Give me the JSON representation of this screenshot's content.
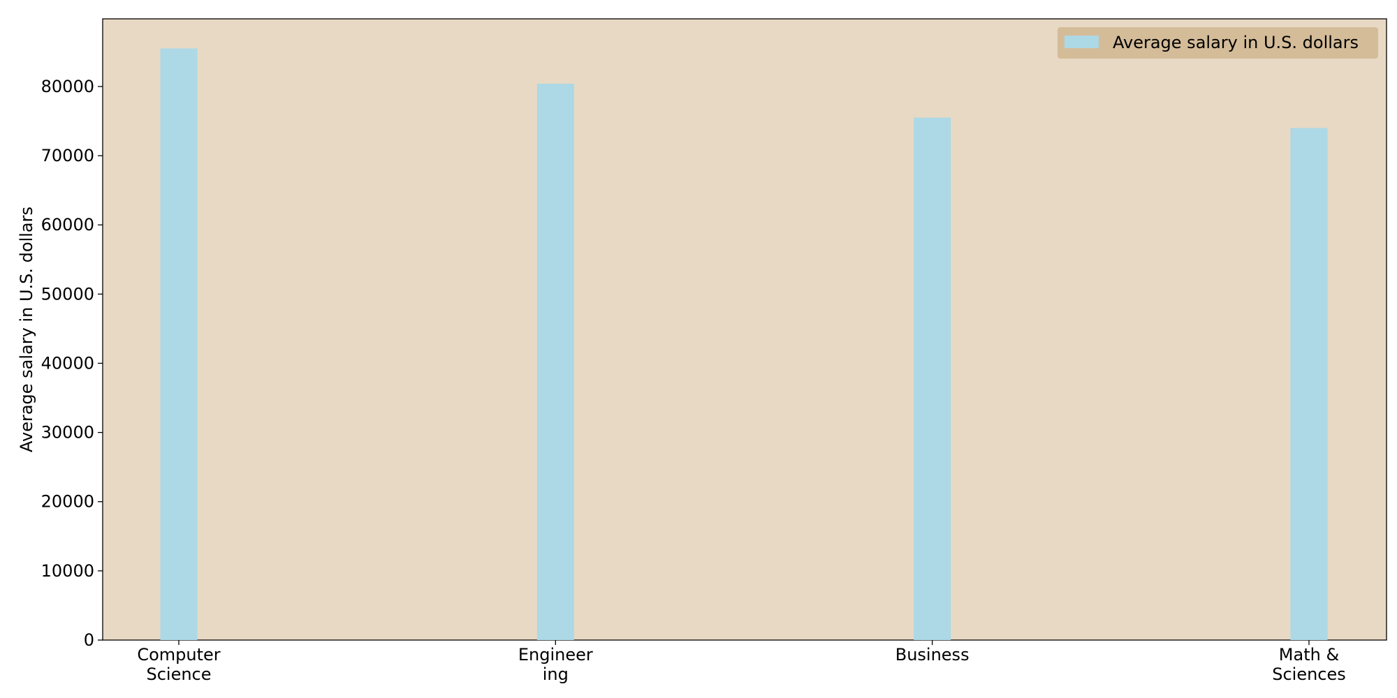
{
  "chart_data": {
    "type": "bar",
    "categories": [
      [
        "Computer",
        "Science"
      ],
      [
        "Engineer",
        "ing"
      ],
      [
        "Business"
      ],
      [
        "Math &",
        "Sciences"
      ]
    ],
    "values": [
      85500,
      80400,
      75500,
      74000
    ],
    "xlabel": "",
    "ylabel": "Average salary in U.S. dollars",
    "ylim": [
      0,
      89775
    ],
    "yticks": [
      0,
      10000,
      20000,
      30000,
      40000,
      50000,
      60000,
      70000,
      80000
    ],
    "legend": {
      "label": "Average salary in U.S. dollars",
      "placement": "top-right"
    },
    "grid": false,
    "colors": {
      "bar": "#add8e6",
      "plot_background": "#e8d9c4",
      "legend_background": "#d4bc99",
      "axis": "#000000"
    }
  }
}
